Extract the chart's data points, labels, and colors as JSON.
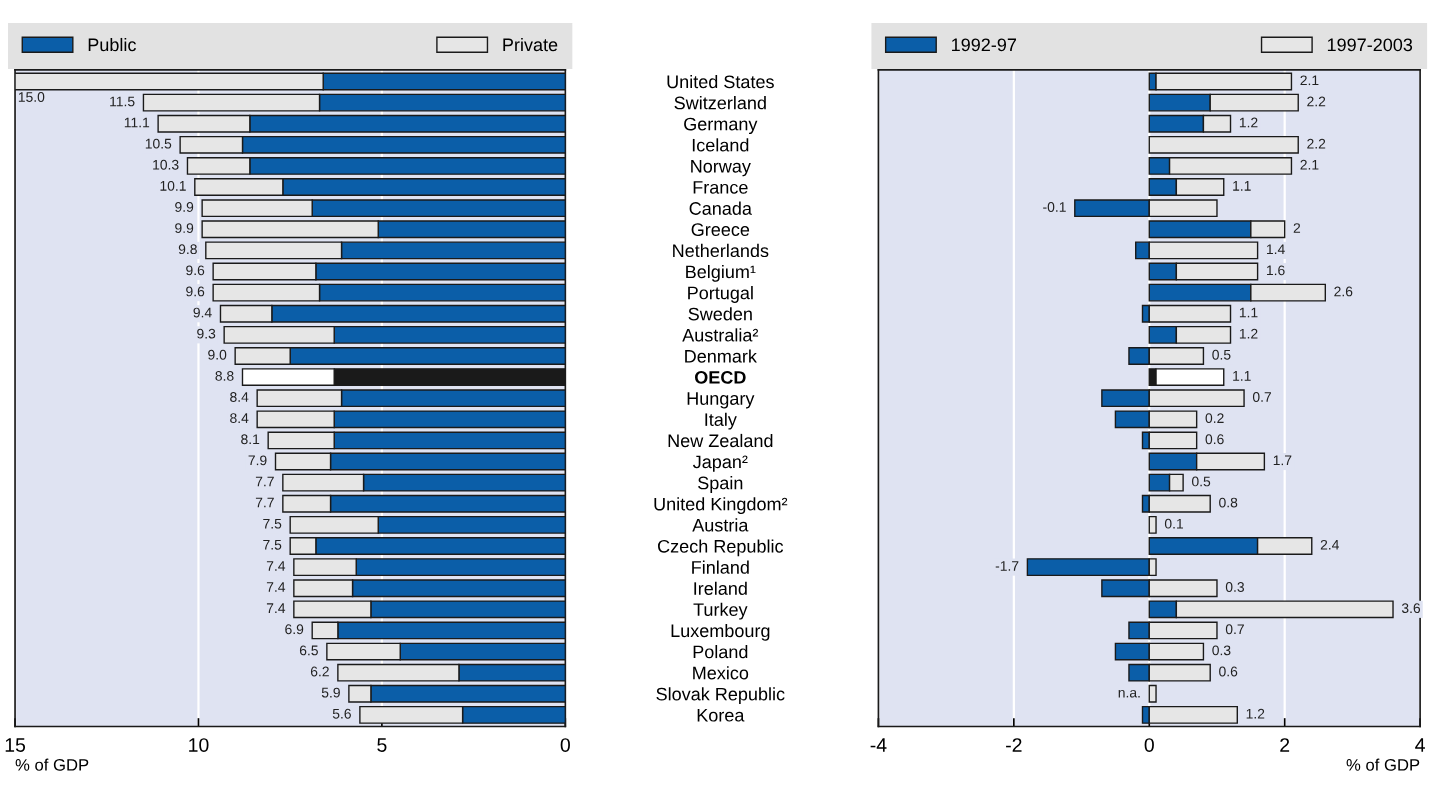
{
  "chart_data": [
    {
      "type": "bar",
      "orientation": "horizontal",
      "stacked": true,
      "xlabel": "% of GDP",
      "xlim": [
        15,
        0
      ],
      "xticks": [
        15,
        10,
        5,
        0
      ],
      "grid": "x",
      "legend": "top",
      "categories": [
        "United States",
        "Switzerland",
        "Germany",
        "Iceland",
        "Norway",
        "France",
        "Canada",
        "Greece",
        "Netherlands",
        "Belgium¹",
        "Portugal",
        "Sweden",
        "Australia²",
        "Denmark",
        "OECD",
        "Hungary",
        "Italy",
        "New Zealand",
        "Japan²",
        "Spain",
        "United Kingdom²",
        "Austria",
        "Czech Republic",
        "Finland",
        "Ireland",
        "Turkey",
        "Luxembourg",
        "Poland",
        "Mexico",
        "Slovak Republic",
        "Korea"
      ],
      "series": [
        {
          "name": "Public",
          "color": "#0b5ea8",
          "values": [
            6.6,
            6.7,
            8.6,
            8.8,
            8.6,
            7.7,
            6.9,
            5.1,
            6.1,
            6.8,
            6.7,
            8.0,
            6.3,
            7.5,
            6.3,
            6.1,
            6.3,
            6.3,
            6.4,
            5.5,
            6.4,
            5.1,
            6.8,
            5.7,
            5.8,
            5.3,
            6.2,
            4.5,
            2.9,
            5.3,
            2.8
          ],
          "colors": [
            "#0b5ea8",
            "#0b5ea8",
            "#0b5ea8",
            "#0b5ea8",
            "#0b5ea8",
            "#0b5ea8",
            "#0b5ea8",
            "#0b5ea8",
            "#0b5ea8",
            "#0b5ea8",
            "#0b5ea8",
            "#0b5ea8",
            "#0b5ea8",
            "#0b5ea8",
            "#1a1a1a",
            "#0b5ea8",
            "#0b5ea8",
            "#0b5ea8",
            "#0b5ea8",
            "#0b5ea8",
            "#0b5ea8",
            "#0b5ea8",
            "#0b5ea8",
            "#0b5ea8",
            "#0b5ea8",
            "#0b5ea8",
            "#0b5ea8",
            "#0b5ea8",
            "#0b5ea8",
            "#0b5ea8",
            "#0b5ea8"
          ]
        },
        {
          "name": "Private",
          "color": "#e6e6e6",
          "values": [
            8.4,
            4.8,
            2.5,
            1.7,
            1.7,
            2.4,
            3.0,
            4.8,
            3.7,
            2.8,
            2.9,
            1.4,
            3.0,
            1.5,
            2.5,
            2.3,
            2.1,
            1.8,
            1.5,
            2.2,
            1.3,
            2.4,
            0.7,
            1.7,
            1.6,
            2.1,
            0.7,
            2.0,
            3.3,
            0.6,
            2.8
          ],
          "colors": [
            "#e6e6e6",
            "#e6e6e6",
            "#e6e6e6",
            "#e6e6e6",
            "#e6e6e6",
            "#e6e6e6",
            "#e6e6e6",
            "#e6e6e6",
            "#e6e6e6",
            "#e6e6e6",
            "#e6e6e6",
            "#e6e6e6",
            "#e6e6e6",
            "#e6e6e6",
            "#ffffff",
            "#e6e6e6",
            "#e6e6e6",
            "#e6e6e6",
            "#e6e6e6",
            "#e6e6e6",
            "#e6e6e6",
            "#e6e6e6",
            "#e6e6e6",
            "#e6e6e6",
            "#e6e6e6",
            "#e6e6e6",
            "#e6e6e6",
            "#e6e6e6",
            "#e6e6e6",
            "#e6e6e6",
            "#e6e6e6"
          ]
        }
      ],
      "totals": [
        "15.0",
        "11.5",
        "11.1",
        "10.5",
        "10.3",
        "10.1",
        "9.9",
        "9.9",
        "9.8",
        "9.6",
        "9.6",
        "9.4",
        "9.3",
        "9.0",
        "8.8",
        "8.4",
        "8.4",
        "8.1",
        "7.9",
        "7.7",
        "7.7",
        "7.5",
        "7.5",
        "7.4",
        "7.4",
        "7.4",
        "6.9",
        "6.5",
        "6.2",
        "5.9",
        "5.6"
      ]
    },
    {
      "type": "bar",
      "orientation": "horizontal",
      "stacked": true,
      "xlabel": "% of GDP",
      "xlim": [
        -4,
        4
      ],
      "xticks": [
        -4,
        -2,
        0,
        2,
        4
      ],
      "grid": "x",
      "legend": "top",
      "tick_labels": "x",
      "categories": [
        null,
        null,
        null,
        null,
        null,
        null,
        null,
        null,
        null,
        null,
        null,
        null,
        null,
        null,
        null,
        null,
        null,
        null,
        null,
        null,
        null,
        null,
        null,
        null,
        null,
        null,
        null,
        null,
        null,
        null,
        null
      ],
      "series": [
        {
          "name": "1992-97",
          "color": "#0b5ea8",
          "values": [
            0.1,
            0.9,
            0.8,
            0,
            0.3,
            0.4,
            -1.1,
            1.5,
            -0.2,
            0.4,
            1.5,
            -0.1,
            0.4,
            -0.3,
            0.1,
            -0.7,
            -0.5,
            -0.1,
            0.7,
            0.3,
            -0.1,
            0,
            1.6,
            -1.8,
            -0.7,
            0.4,
            -0.3,
            -0.5,
            -0.3,
            null,
            -0.1
          ],
          "colors": [
            "#0b5ea8",
            "#0b5ea8",
            "#0b5ea8",
            "#0b5ea8",
            "#0b5ea8",
            "#0b5ea8",
            "#0b5ea8",
            "#0b5ea8",
            "#0b5ea8",
            "#0b5ea8",
            "#0b5ea8",
            "#0b5ea8",
            "#0b5ea8",
            "#0b5ea8",
            "#1a1a1a",
            "#0b5ea8",
            "#0b5ea8",
            "#0b5ea8",
            "#0b5ea8",
            "#0b5ea8",
            "#0b5ea8",
            "#0b5ea8",
            "#0b5ea8",
            "#0b5ea8",
            "#0b5ea8",
            "#0b5ea8",
            "#0b5ea8",
            "#0b5ea8",
            "#0b5ea8",
            "#0b5ea8",
            "#0b5ea8"
          ]
        },
        {
          "name": "1997-2003",
          "color": "#e6e6e6",
          "values": [
            2.0,
            1.3,
            0.4,
            2.2,
            1.8,
            0.7,
            1.0,
            0.5,
            1.6,
            1.2,
            1.1,
            1.2,
            0.8,
            0.8,
            1.0,
            1.4,
            0.7,
            0.7,
            1.0,
            0.2,
            0.9,
            0.1,
            0.8,
            0.1,
            1.0,
            3.2,
            1.0,
            0.8,
            0.9,
            0.1,
            1.3
          ],
          "colors": [
            "#e6e6e6",
            "#e6e6e6",
            "#e6e6e6",
            "#e6e6e6",
            "#e6e6e6",
            "#e6e6e6",
            "#e6e6e6",
            "#e6e6e6",
            "#e6e6e6",
            "#e6e6e6",
            "#e6e6e6",
            "#e6e6e6",
            "#e6e6e6",
            "#e6e6e6",
            "#ffffff",
            "#e6e6e6",
            "#e6e6e6",
            "#e6e6e6",
            "#e6e6e6",
            "#e6e6e6",
            "#e6e6e6",
            "#e6e6e6",
            "#e6e6e6",
            "#e6e6e6",
            "#e6e6e6",
            "#e6e6e6",
            "#e6e6e6",
            "#e6e6e6",
            "#e6e6e6",
            "#e6e6e6",
            "#e6e6e6"
          ]
        }
      ],
      "totals": [
        "2.1",
        "2.2",
        "1.2",
        "2.2",
        "2.1",
        "1.1",
        "-0.1",
        "2",
        "1.4",
        "1.6",
        "2.6",
        "1.1",
        "1.2",
        "0.5",
        "1.1",
        "0.7",
        "0.2",
        "0.6",
        "1.7",
        "0.5",
        "0.8",
        "0.1",
        "2.4",
        "-1.7",
        "0.3",
        "3.6",
        "0.7",
        "0.3",
        "0.6",
        "n.a.",
        "1.2"
      ]
    }
  ]
}
